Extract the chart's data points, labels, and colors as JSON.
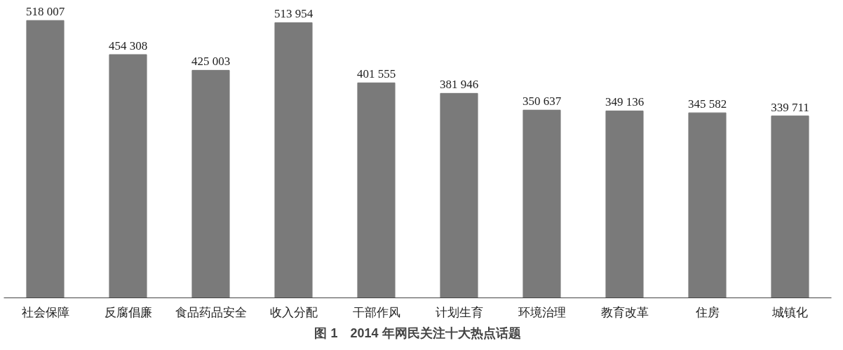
{
  "chart_data": {
    "type": "bar",
    "title": "图 1　2014 年网民关注十大热点话题",
    "categories": [
      "社会保障",
      "反腐倡廉",
      "食品药品安全",
      "收入分配",
      "干部作风",
      "计划生育",
      "环境治理",
      "教育改革",
      "住房",
      "城镇化"
    ],
    "values": [
      518007,
      454308,
      425003,
      513954,
      401555,
      381946,
      350637,
      349136,
      345582,
      339711
    ],
    "value_labels": [
      "518 007",
      "454 308",
      "425 003",
      "513 954",
      "401 555",
      "381 946",
      "350 637",
      "349 136",
      "345 582",
      "339 711"
    ],
    "color": "#7a7a7a",
    "grid": false
  }
}
